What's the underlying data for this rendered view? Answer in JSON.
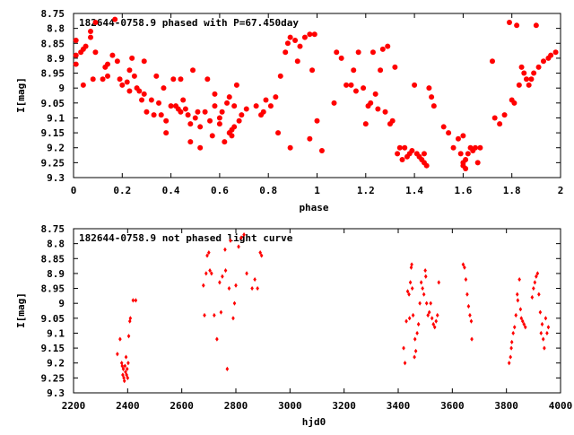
{
  "chart_data": [
    {
      "type": "scatter",
      "title": "182644-0758.9 phased with P=67.450day",
      "xlabel": "phase",
      "ylabel": "I[mag]",
      "xlim": [
        0,
        2
      ],
      "ylim": [
        9.3,
        8.75
      ],
      "y_axis_inverted": true,
      "grid": false,
      "marker_color": "#ff0000",
      "marker": "filled-circle",
      "x_ticks": [
        "0",
        "0.2",
        "0.4",
        "0.6",
        "0.8",
        "1",
        "1.2",
        "1.4",
        "1.6",
        "1.8",
        "2"
      ],
      "y_ticks": [
        "8.75",
        "8.8",
        "8.85",
        "8.9",
        "8.95",
        "9",
        "9.05",
        "9.1",
        "9.15",
        "9.2",
        "9.25",
        "9.3"
      ],
      "points": [
        [
          0.01,
          8.92
        ],
        [
          0.01,
          8.89
        ],
        [
          0.01,
          8.84
        ],
        [
          0.03,
          8.88
        ],
        [
          0.04,
          8.87
        ],
        [
          0.05,
          8.86
        ],
        [
          0.07,
          8.83
        ],
        [
          0.07,
          8.81
        ],
        [
          0.04,
          8.99
        ],
        [
          0.08,
          8.97
        ],
        [
          0.09,
          8.88
        ],
        [
          0.09,
          8.78
        ],
        [
          0.12,
          8.97
        ],
        [
          0.13,
          8.93
        ],
        [
          0.14,
          8.92
        ],
        [
          0.14,
          8.96
        ],
        [
          0.16,
          8.89
        ],
        [
          0.17,
          8.77
        ],
        [
          0.18,
          8.91
        ],
        [
          0.19,
          8.97
        ],
        [
          0.2,
          8.99
        ],
        [
          0.22,
          8.98
        ],
        [
          0.23,
          8.94
        ],
        [
          0.23,
          9.01
        ],
        [
          0.24,
          8.9
        ],
        [
          0.25,
          8.96
        ],
        [
          0.26,
          9.0
        ],
        [
          0.27,
          9.01
        ],
        [
          0.28,
          9.04
        ],
        [
          0.29,
          8.91
        ],
        [
          0.29,
          9.02
        ],
        [
          0.3,
          9.08
        ],
        [
          0.32,
          9.04
        ],
        [
          0.33,
          9.09
        ],
        [
          0.34,
          8.96
        ],
        [
          0.35,
          9.05
        ],
        [
          0.36,
          9.09
        ],
        [
          0.37,
          9.0
        ],
        [
          0.38,
          9.11
        ],
        [
          0.38,
          9.15
        ],
        [
          0.4,
          9.06
        ],
        [
          0.41,
          8.97
        ],
        [
          0.42,
          9.06
        ],
        [
          0.43,
          9.07
        ],
        [
          0.44,
          9.08
        ],
        [
          0.44,
          8.97
        ],
        [
          0.45,
          9.04
        ],
        [
          0.46,
          9.07
        ],
        [
          0.47,
          9.09
        ],
        [
          0.48,
          9.12
        ],
        [
          0.48,
          9.18
        ],
        [
          0.49,
          8.94
        ],
        [
          0.5,
          9.1
        ],
        [
          0.51,
          9.08
        ],
        [
          0.52,
          9.13
        ],
        [
          0.52,
          9.2
        ],
        [
          0.54,
          9.08
        ],
        [
          0.55,
          8.97
        ],
        [
          0.56,
          9.11
        ],
        [
          0.57,
          9.16
        ],
        [
          0.58,
          9.02
        ],
        [
          0.58,
          9.06
        ],
        [
          0.6,
          9.1
        ],
        [
          0.6,
          9.12
        ],
        [
          0.61,
          9.08
        ],
        [
          0.62,
          9.18
        ],
        [
          0.63,
          9.05
        ],
        [
          0.64,
          9.03
        ],
        [
          0.64,
          9.15
        ],
        [
          0.65,
          9.14
        ],
        [
          0.65,
          9.16
        ],
        [
          0.66,
          9.13
        ],
        [
          0.66,
          9.06
        ],
        [
          0.67,
          8.99
        ],
        [
          0.68,
          9.11
        ],
        [
          0.69,
          9.09
        ],
        [
          0.71,
          9.07
        ],
        [
          0.75,
          9.06
        ],
        [
          0.77,
          9.09
        ],
        [
          0.78,
          9.08
        ],
        [
          0.79,
          9.04
        ],
        [
          0.81,
          9.06
        ],
        [
          0.83,
          9.03
        ],
        [
          0.84,
          9.15
        ],
        [
          0.85,
          8.96
        ],
        [
          0.87,
          8.88
        ],
        [
          0.88,
          8.85
        ],
        [
          0.89,
          8.83
        ],
        [
          0.89,
          9.2
        ],
        [
          0.91,
          8.84
        ],
        [
          0.92,
          8.91
        ],
        [
          0.93,
          8.86
        ],
        [
          0.95,
          8.83
        ],
        [
          0.97,
          8.82
        ],
        [
          0.97,
          9.17
        ],
        [
          0.98,
          8.94
        ],
        [
          0.99,
          8.82
        ],
        [
          1.0,
          9.11
        ],
        [
          1.02,
          9.21
        ],
        [
          1.07,
          9.05
        ],
        [
          1.08,
          8.88
        ],
        [
          1.1,
          8.9
        ],
        [
          1.12,
          8.99
        ],
        [
          1.14,
          8.99
        ],
        [
          1.15,
          8.94
        ],
        [
          1.16,
          9.01
        ],
        [
          1.17,
          8.88
        ],
        [
          1.19,
          9.0
        ],
        [
          1.2,
          9.12
        ],
        [
          1.21,
          9.06
        ],
        [
          1.22,
          9.05
        ],
        [
          1.23,
          8.88
        ],
        [
          1.24,
          9.02
        ],
        [
          1.25,
          9.07
        ],
        [
          1.26,
          8.94
        ],
        [
          1.27,
          8.87
        ],
        [
          1.28,
          9.08
        ],
        [
          1.29,
          8.86
        ],
        [
          1.3,
          9.12
        ],
        [
          1.31,
          9.11
        ],
        [
          1.32,
          8.93
        ],
        [
          1.33,
          9.22
        ],
        [
          1.34,
          9.2
        ],
        [
          1.35,
          9.24
        ],
        [
          1.36,
          9.2
        ],
        [
          1.37,
          9.23
        ],
        [
          1.38,
          9.22
        ],
        [
          1.39,
          9.21
        ],
        [
          1.4,
          8.99
        ],
        [
          1.41,
          9.22
        ],
        [
          1.42,
          9.23
        ],
        [
          1.43,
          9.24
        ],
        [
          1.44,
          9.25
        ],
        [
          1.44,
          9.22
        ],
        [
          1.45,
          9.26
        ],
        [
          1.46,
          9.0
        ],
        [
          1.47,
          9.03
        ],
        [
          1.48,
          9.06
        ],
        [
          1.52,
          9.13
        ],
        [
          1.54,
          9.15
        ],
        [
          1.56,
          9.2
        ],
        [
          1.58,
          9.17
        ],
        [
          1.59,
          9.22
        ],
        [
          1.6,
          9.25
        ],
        [
          1.61,
          9.24
        ],
        [
          1.62,
          9.22
        ],
        [
          1.63,
          9.2
        ],
        [
          1.64,
          9.21
        ],
        [
          1.65,
          9.2
        ],
        [
          1.67,
          9.2
        ],
        [
          1.61,
          9.27
        ],
        [
          1.6,
          9.16
        ],
        [
          1.6,
          9.26
        ],
        [
          1.66,
          9.25
        ],
        [
          1.72,
          8.91
        ],
        [
          1.73,
          9.1
        ],
        [
          1.75,
          9.12
        ],
        [
          1.77,
          9.09
        ],
        [
          1.79,
          8.78
        ],
        [
          1.8,
          9.04
        ],
        [
          1.81,
          9.05
        ],
        [
          1.82,
          8.79
        ],
        [
          1.83,
          8.99
        ],
        [
          1.84,
          8.93
        ],
        [
          1.85,
          8.95
        ],
        [
          1.86,
          8.97
        ],
        [
          1.87,
          8.99
        ],
        [
          1.88,
          8.97
        ],
        [
          1.89,
          8.95
        ],
        [
          1.9,
          8.79
        ],
        [
          1.91,
          8.93
        ],
        [
          1.93,
          8.91
        ],
        [
          1.95,
          8.9
        ],
        [
          1.96,
          8.89
        ],
        [
          1.98,
          8.88
        ]
      ]
    },
    {
      "type": "scatter",
      "title": "182644-0758.9 not phased light curve",
      "xlabel": "hjd0",
      "ylabel": "I[mag]",
      "xlim": [
        2200,
        4000
      ],
      "ylim": [
        9.3,
        8.75
      ],
      "y_axis_inverted": true,
      "grid": false,
      "marker_color": "#ff0000",
      "marker": "small-diamond",
      "x_ticks": [
        "2200",
        "2400",
        "2600",
        "2800",
        "3000",
        "3200",
        "3400",
        "3600",
        "3800",
        "4000"
      ],
      "y_ticks": [
        "8.75",
        "8.8",
        "8.85",
        "8.9",
        "8.95",
        "9",
        "9.05",
        "9.1",
        "9.15",
        "9.2",
        "9.25",
        "9.3"
      ],
      "points": [
        [
          2362,
          9.17
        ],
        [
          2372,
          9.12
        ],
        [
          2378,
          9.2
        ],
        [
          2380,
          9.21
        ],
        [
          2382,
          9.24
        ],
        [
          2384,
          9.22
        ],
        [
          2386,
          9.25
        ],
        [
          2388,
          9.26
        ],
        [
          2390,
          9.21
        ],
        [
          2392,
          9.23
        ],
        [
          2394,
          9.18
        ],
        [
          2396,
          9.24
        ],
        [
          2398,
          9.22
        ],
        [
          2400,
          9.25
        ],
        [
          2402,
          9.2
        ],
        [
          2404,
          9.11
        ],
        [
          2408,
          9.06
        ],
        [
          2410,
          9.05
        ],
        [
          2420,
          8.99
        ],
        [
          2430,
          8.99
        ],
        [
          2680,
          8.94
        ],
        [
          2684,
          9.04
        ],
        [
          2690,
          8.9
        ],
        [
          2694,
          8.84
        ],
        [
          2700,
          8.83
        ],
        [
          2704,
          8.89
        ],
        [
          2710,
          8.9
        ],
        [
          2720,
          9.04
        ],
        [
          2730,
          9.12
        ],
        [
          2740,
          8.93
        ],
        [
          2745,
          9.03
        ],
        [
          2750,
          8.91
        ],
        [
          2760,
          8.82
        ],
        [
          2762,
          8.89
        ],
        [
          2768,
          9.22
        ],
        [
          2775,
          8.95
        ],
        [
          2780,
          8.79
        ],
        [
          2790,
          9.05
        ],
        [
          2795,
          9.0
        ],
        [
          2800,
          8.94
        ],
        [
          2810,
          8.81
        ],
        [
          2820,
          8.78
        ],
        [
          2830,
          8.77
        ],
        [
          2840,
          8.9
        ],
        [
          2860,
          8.95
        ],
        [
          2870,
          8.92
        ],
        [
          2880,
          8.95
        ],
        [
          2890,
          8.83
        ],
        [
          2895,
          8.84
        ],
        [
          3420,
          9.15
        ],
        [
          3425,
          9.2
        ],
        [
          3430,
          9.06
        ],
        [
          3435,
          8.96
        ],
        [
          3440,
          8.97
        ],
        [
          3442,
          9.05
        ],
        [
          3445,
          8.93
        ],
        [
          3448,
          8.88
        ],
        [
          3450,
          8.87
        ],
        [
          3452,
          8.95
        ],
        [
          3455,
          9.04
        ],
        [
          3460,
          9.18
        ],
        [
          3462,
          9.12
        ],
        [
          3465,
          9.16
        ],
        [
          3470,
          9.1
        ],
        [
          3475,
          9.07
        ],
        [
          3480,
          9.0
        ],
        [
          3485,
          8.93
        ],
        [
          3490,
          8.95
        ],
        [
          3495,
          8.97
        ],
        [
          3500,
          8.89
        ],
        [
          3502,
          8.91
        ],
        [
          3505,
          9.0
        ],
        [
          3510,
          9.04
        ],
        [
          3515,
          9.03
        ],
        [
          3520,
          9.0
        ],
        [
          3525,
          9.05
        ],
        [
          3530,
          9.07
        ],
        [
          3535,
          9.08
        ],
        [
          3540,
          9.06
        ],
        [
          3545,
          9.04
        ],
        [
          3550,
          8.93
        ],
        [
          3640,
          8.87
        ],
        [
          3645,
          8.88
        ],
        [
          3650,
          8.92
        ],
        [
          3655,
          8.97
        ],
        [
          3660,
          9.01
        ],
        [
          3665,
          9.04
        ],
        [
          3670,
          9.06
        ],
        [
          3672,
          9.12
        ],
        [
          3810,
          9.2
        ],
        [
          3815,
          9.18
        ],
        [
          3818,
          9.15
        ],
        [
          3820,
          9.13
        ],
        [
          3825,
          9.1
        ],
        [
          3830,
          9.08
        ],
        [
          3835,
          9.04
        ],
        [
          3840,
          8.97
        ],
        [
          3842,
          8.99
        ],
        [
          3848,
          8.92
        ],
        [
          3852,
          9.02
        ],
        [
          3855,
          9.05
        ],
        [
          3860,
          9.06
        ],
        [
          3865,
          9.07
        ],
        [
          3870,
          9.08
        ],
        [
          3895,
          8.98
        ],
        [
          3900,
          8.95
        ],
        [
          3905,
          8.93
        ],
        [
          3910,
          8.91
        ],
        [
          3915,
          8.9
        ],
        [
          3920,
          8.97
        ],
        [
          3925,
          9.03
        ],
        [
          3928,
          9.1
        ],
        [
          3932,
          9.07
        ],
        [
          3936,
          9.12
        ],
        [
          3940,
          9.15
        ],
        [
          3945,
          9.05
        ],
        [
          3950,
          9.1
        ],
        [
          3955,
          9.08
        ]
      ]
    }
  ]
}
